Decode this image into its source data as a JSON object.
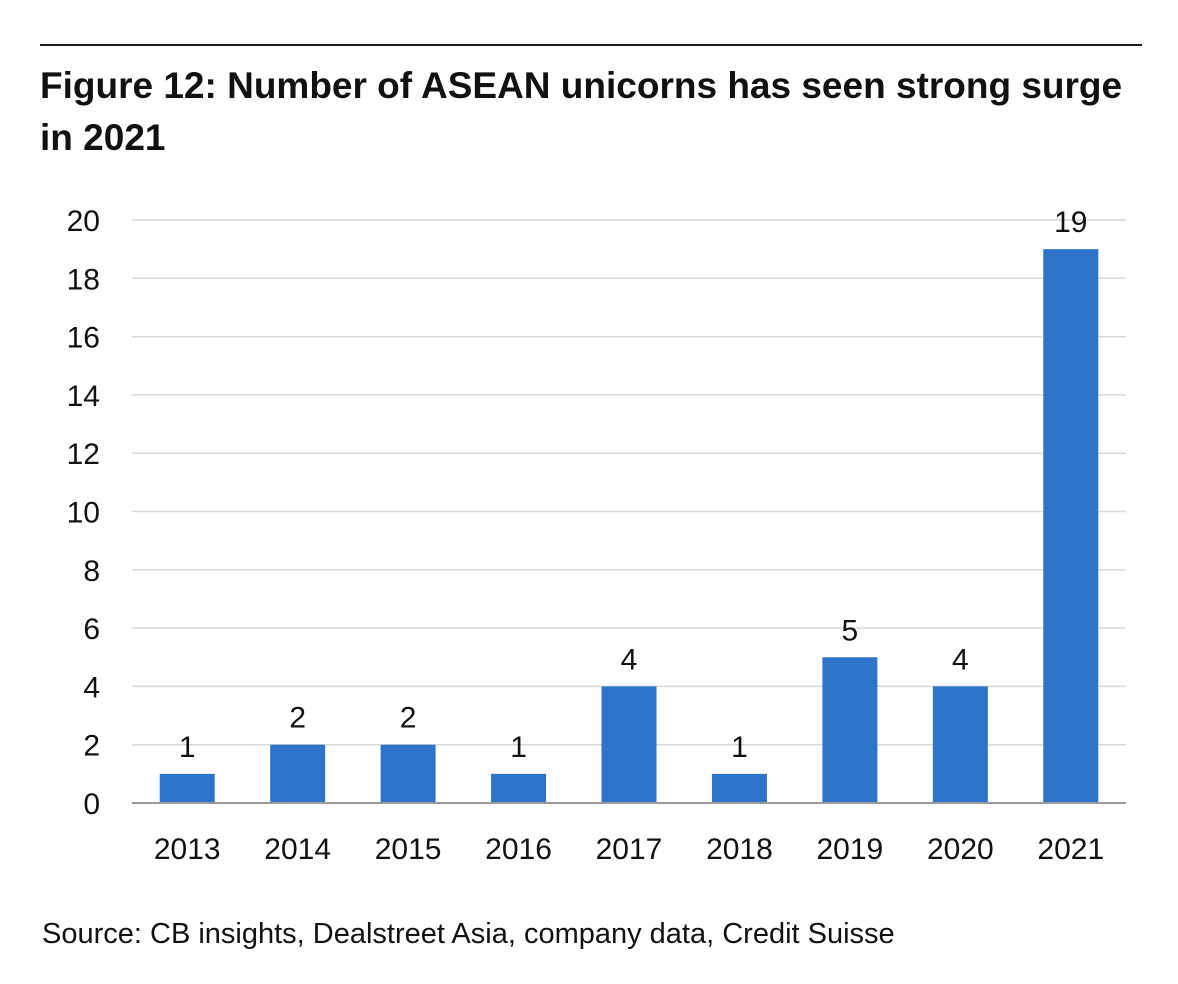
{
  "figure": {
    "title": "Figure 12: Number of ASEAN unicorns has seen strong surge in 2021",
    "source": "Source: CB insights, Dealstreet Asia, company data, Credit Suisse"
  },
  "chart_data": {
    "type": "bar",
    "title": "Figure 12: Number of ASEAN unicorns has seen strong surge in 2021",
    "xlabel": "",
    "ylabel": "",
    "categories": [
      "2013",
      "2014",
      "2015",
      "2016",
      "2017",
      "2018",
      "2019",
      "2020",
      "2021"
    ],
    "values": [
      1,
      2,
      2,
      1,
      4,
      1,
      5,
      4,
      19
    ],
    "data_labels": [
      "1",
      "2",
      "2",
      "1",
      "4",
      "1",
      "5",
      "4",
      "19"
    ],
    "ylim": [
      0,
      20
    ],
    "yticks": [
      0,
      2,
      4,
      6,
      8,
      10,
      12,
      14,
      16,
      18,
      20
    ],
    "grid": true,
    "legend": "none",
    "colors": {
      "bar": "#2e74c8",
      "grid": "#d9d9d9",
      "axis": "#9a9a9a"
    }
  }
}
